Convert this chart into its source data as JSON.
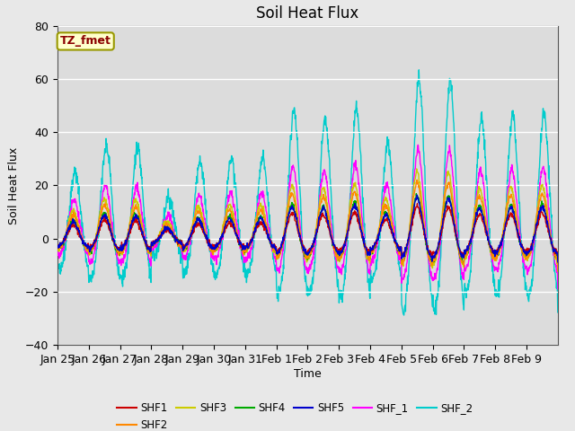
{
  "title": "Soil Heat Flux",
  "ylabel": "Soil Heat Flux",
  "xlabel": "Time",
  "annotation_text": "TZ_fmet",
  "annotation_color": "#8B0000",
  "annotation_bg": "#FFFFCC",
  "annotation_edge": "#999900",
  "ylim": [
    -40,
    80
  ],
  "background_color": "#E8E8E8",
  "plot_bg": "#DCDCDC",
  "series_colors": {
    "SHF1": "#CC0000",
    "SHF2": "#FF8800",
    "SHF3": "#CCCC00",
    "SHF4": "#00AA00",
    "SHF5": "#0000CC",
    "SHF_1": "#FF00FF",
    "SHF_2": "#00CCCC"
  },
  "n_days": 16,
  "tick_labels": [
    "Jan 25",
    "Jan 26",
    "Jan 27",
    "Jan 28",
    "Jan 29",
    "Jan 30",
    "Jan 31",
    "Feb 1",
    "Feb 2",
    "Feb 3",
    "Feb 4",
    "Feb 5",
    "Feb 6",
    "Feb 7",
    "Feb 8",
    "Feb 9"
  ],
  "grid_color": "white",
  "grid_lw": 1.0
}
